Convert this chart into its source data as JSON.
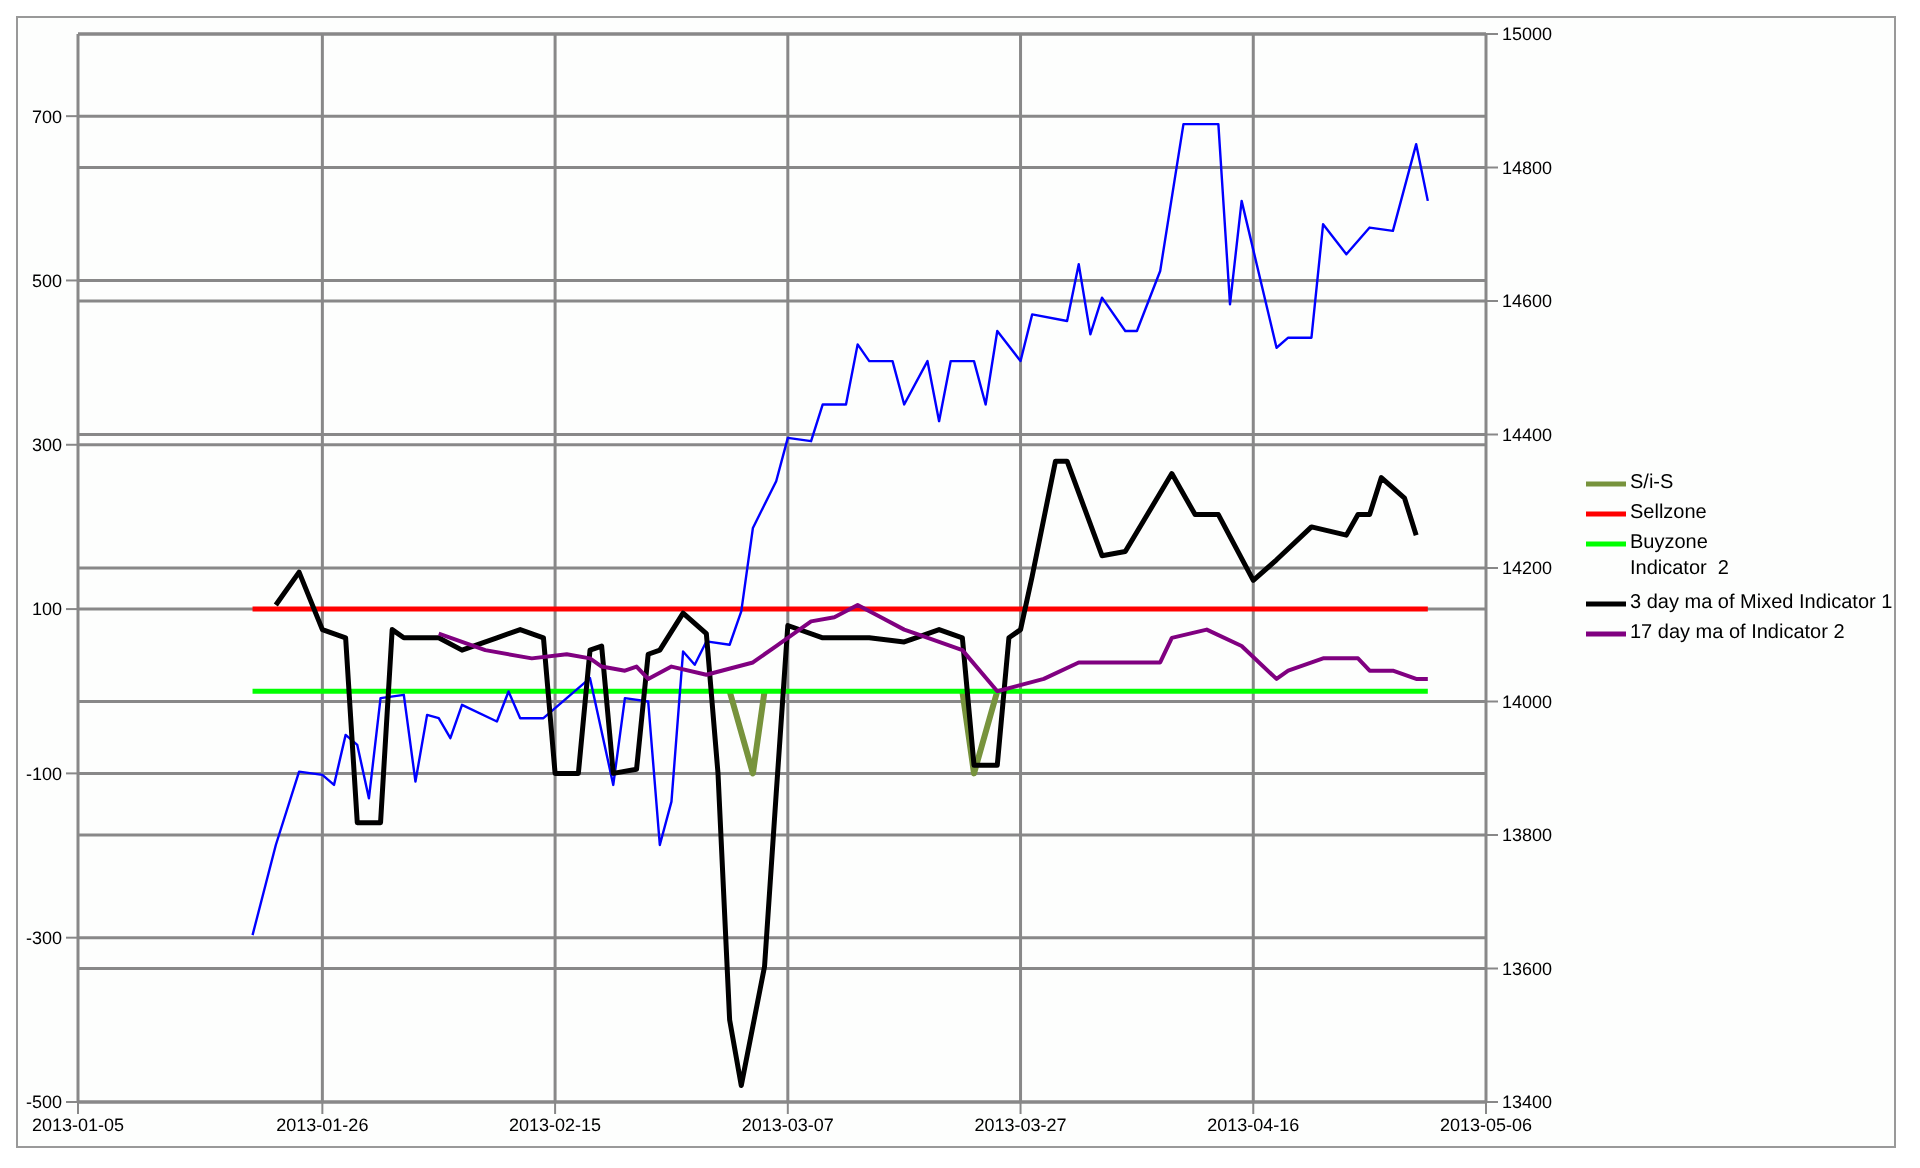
{
  "chart_data": {
    "type": "line",
    "xlim": [
      "2013-01-05",
      "2013-05-06"
    ],
    "xticks": [
      "2013-01-05",
      "2013-01-26",
      "2013-02-15",
      "2013-03-07",
      "2013-03-27",
      "2013-04-16",
      "2013-05-06"
    ],
    "ylim": [
      -500,
      800
    ],
    "yticks": [
      -500,
      -300,
      -100,
      100,
      300,
      500,
      700
    ],
    "y2lim": [
      13400,
      15000
    ],
    "y2ticks": [
      13400,
      13600,
      13800,
      14000,
      14200,
      14400,
      14600,
      14800,
      15000
    ],
    "grid": true,
    "legend": "right",
    "annotations": [
      "Indicator  2"
    ],
    "marker": "none",
    "line_style": "solid",
    "series": [
      {
        "name": "S/i-S",
        "color": "#77933c",
        "x": [
          "2013-03-02",
          "2013-03-04",
          "2013-03-05",
          "2013-03-14",
          "2013-03-22",
          "2013-03-23",
          "2013-03-25"
        ],
        "values": [
          0,
          -100,
          0,
          null,
          0,
          -100,
          0
        ]
      },
      {
        "name": "Sellzone",
        "color": "#ff0000",
        "x": [
          "2013-01-20",
          "2013-05-01"
        ],
        "values": [
          100,
          100
        ]
      },
      {
        "name": "Buyzone",
        "color": "#00ff00",
        "x": [
          "2013-01-20",
          "2013-05-01"
        ],
        "values": [
          0,
          0
        ]
      },
      {
        "color": "#0000ff",
        "axis": "y2",
        "x": [
          "2013-01-20",
          "2013-01-22",
          "2013-01-24",
          "2013-01-26",
          "2013-01-27",
          "2013-01-28",
          "2013-01-29",
          "2013-01-30",
          "2013-01-31",
          "2013-02-02",
          "2013-02-03",
          "2013-02-04",
          "2013-02-05",
          "2013-02-06",
          "2013-02-07",
          "2013-02-10",
          "2013-02-11",
          "2013-02-12",
          "2013-02-14",
          "2013-02-18",
          "2013-02-20",
          "2013-02-21",
          "2013-02-23",
          "2013-02-24",
          "2013-02-25",
          "2013-02-26",
          "2013-02-27",
          "2013-02-28",
          "2013-03-02",
          "2013-03-03",
          "2013-03-04",
          "2013-03-06",
          "2013-03-07",
          "2013-03-09",
          "2013-03-10",
          "2013-03-12",
          "2013-03-13",
          "2013-03-14",
          "2013-03-16",
          "2013-03-17",
          "2013-03-19",
          "2013-03-20",
          "2013-03-21",
          "2013-03-23",
          "2013-03-24",
          "2013-03-25",
          "2013-03-27",
          "2013-03-28",
          "2013-03-31",
          "2013-04-01",
          "2013-04-02",
          "2013-04-03",
          "2013-04-05",
          "2013-04-06",
          "2013-04-08",
          "2013-04-10",
          "2013-04-13",
          "2013-04-14",
          "2013-04-15",
          "2013-04-18",
          "2013-04-19",
          "2013-04-21",
          "2013-04-22",
          "2013-04-24",
          "2013-04-26",
          "2013-04-28",
          "2013-04-30",
          "2013-05-01"
        ],
        "values": [
          13650,
          13785,
          13895,
          13890,
          13875,
          13950,
          13935,
          13855,
          14005,
          14010,
          13880,
          13980,
          13975,
          13945,
          13995,
          13970,
          14015,
          13975,
          13975,
          14035,
          13875,
          14005,
          14000,
          13785,
          13850,
          14075,
          14055,
          14090,
          14085,
          14135,
          14260,
          14330,
          14395,
          14390,
          14445,
          14445,
          14535,
          14510,
          14510,
          14445,
          14510,
          14420,
          14510,
          14510,
          14445,
          14555,
          14510,
          14580,
          14570,
          14655,
          14550,
          14605,
          14555,
          14555,
          14645,
          14865,
          14865,
          14595,
          14750,
          14530,
          14545,
          14545,
          14715,
          14670,
          14710,
          14705,
          14835,
          14750
        ]
      },
      {
        "name": "3 day ma of Mixed Indicator 1",
        "color": "#000000",
        "x": [
          "2013-01-22",
          "2013-01-24",
          "2013-01-25",
          "2013-01-26",
          "2013-01-28",
          "2013-01-29",
          "2013-01-31",
          "2013-02-01",
          "2013-02-02",
          "2013-02-05",
          "2013-02-07",
          "2013-02-10",
          "2013-02-12",
          "2013-02-14",
          "2013-02-15",
          "2013-02-17",
          "2013-02-18",
          "2013-02-19",
          "2013-02-20",
          "2013-02-22",
          "2013-02-23",
          "2013-02-24",
          "2013-02-26",
          "2013-02-28",
          "2013-03-01",
          "2013-03-02",
          "2013-03-03",
          "2013-03-05",
          "2013-03-06",
          "2013-03-07",
          "2013-03-10",
          "2013-03-14",
          "2013-03-17",
          "2013-03-18",
          "2013-03-20",
          "2013-03-22",
          "2013-03-23",
          "2013-03-25",
          "2013-03-26",
          "2013-03-27",
          "2013-03-28",
          "2013-03-30",
          "2013-03-31",
          "2013-04-03",
          "2013-04-05",
          "2013-04-09",
          "2013-04-11",
          "2013-04-13",
          "2013-04-16",
          "2013-04-18",
          "2013-04-21",
          "2013-04-24",
          "2013-04-25",
          "2013-04-26",
          "2013-04-27",
          "2013-04-29",
          "2013-04-30"
        ],
        "values": [
          105,
          145,
          110,
          75,
          65,
          -160,
          -160,
          75,
          65,
          65,
          50,
          65,
          75,
          65,
          -100,
          -100,
          50,
          55,
          -100,
          -95,
          45,
          50,
          95,
          70,
          -100,
          -400,
          -480,
          -335,
          -125,
          80,
          65,
          65,
          60,
          65,
          75,
          65,
          -90,
          -90,
          65,
          75,
          140,
          280,
          280,
          165,
          170,
          265,
          215,
          215,
          135,
          160,
          200,
          190,
          215,
          215,
          260,
          235,
          190
        ]
      },
      {
        "name": "17 day ma of Indicator 2",
        "color": "#800080",
        "x": [
          "2013-02-05",
          "2013-02-09",
          "2013-02-13",
          "2013-02-16",
          "2013-02-18",
          "2013-02-19",
          "2013-02-21",
          "2013-02-22",
          "2013-02-23",
          "2013-02-25",
          "2013-02-28",
          "2013-03-04",
          "2013-03-06",
          "2013-03-09",
          "2013-03-11",
          "2013-03-13",
          "2013-03-15",
          "2013-03-17",
          "2013-03-18",
          "2013-03-22",
          "2013-03-25",
          "2013-03-29",
          "2013-04-01",
          "2013-04-03",
          "2013-04-06",
          "2013-04-08",
          "2013-04-09",
          "2013-04-12",
          "2013-04-15",
          "2013-04-18",
          "2013-04-19",
          "2013-04-22",
          "2013-04-25",
          "2013-04-26",
          "2013-04-28",
          "2013-04-30",
          "2013-05-01"
        ],
        "values": [
          70,
          50,
          40,
          45,
          40,
          30,
          25,
          30,
          15,
          30,
          20,
          35,
          55,
          85,
          90,
          105,
          90,
          75,
          70,
          50,
          0,
          15,
          35,
          35,
          35,
          35,
          65,
          75,
          55,
          15,
          25,
          40,
          40,
          25,
          25,
          15,
          15
        ]
      }
    ]
  }
}
